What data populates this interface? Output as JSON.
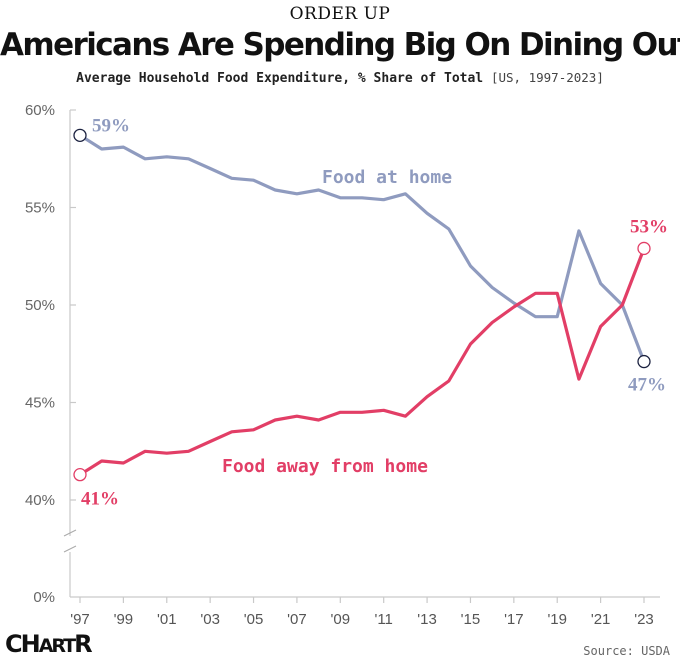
{
  "header": {
    "kicker": "ORDER UP",
    "title": "Americans Are Spending Big On Dining Out",
    "subtitle": "Average Household Food Expenditure, % Share of Total",
    "subtitle_range": "[US, 1997-2023]"
  },
  "footer": {
    "logo_big": "CH",
    "logo_mid": "ART",
    "logo_end": "R",
    "source": "Source: USDA"
  },
  "chart_data": {
    "type": "line",
    "title": "Americans Are Spending Big On Dining Out",
    "subtitle": "Average Household Food Expenditure, % Share of Total [US, 1997-2023]",
    "xlabel": "",
    "ylabel": "",
    "x": [
      1997,
      1998,
      1999,
      2000,
      2001,
      2002,
      2003,
      2004,
      2005,
      2006,
      2007,
      2008,
      2009,
      2010,
      2011,
      2012,
      2013,
      2014,
      2015,
      2016,
      2017,
      2018,
      2019,
      2020,
      2021,
      2022,
      2023
    ],
    "x_tick_values": [
      1997,
      1999,
      2001,
      2003,
      2005,
      2007,
      2009,
      2011,
      2013,
      2015,
      2017,
      2019,
      2021,
      2023
    ],
    "x_tick_labels": [
      "'97",
      "'99",
      "'01",
      "'03",
      "'05",
      "'07",
      "'09",
      "'11",
      "'13",
      "'15",
      "'17",
      "'19",
      "'21",
      "'23"
    ],
    "y_tick_values": [
      40,
      45,
      50,
      55,
      60
    ],
    "y_tick_labels": [
      "40%",
      "45%",
      "50%",
      "55%",
      "60%"
    ],
    "y_zero_label": "0%",
    "ylim": [
      40,
      60
    ],
    "axis_break": true,
    "grid": false,
    "series": [
      {
        "name": "Food at home",
        "color": "#8f9bbf",
        "start_label": "59%",
        "end_label": "47%",
        "values": [
          58.7,
          58.0,
          58.1,
          57.5,
          57.6,
          57.5,
          57.0,
          56.5,
          56.4,
          55.9,
          55.7,
          55.9,
          55.5,
          55.5,
          55.4,
          55.7,
          54.7,
          53.9,
          52.0,
          50.9,
          50.1,
          49.4,
          49.4,
          53.8,
          51.1,
          50.0,
          47.1
        ]
      },
      {
        "name": "Food away from home",
        "color": "#e23e66",
        "start_label": "41%",
        "end_label": "53%",
        "values": [
          41.3,
          42.0,
          41.9,
          42.5,
          42.4,
          42.5,
          43.0,
          43.5,
          43.6,
          44.1,
          44.3,
          44.1,
          44.5,
          44.5,
          44.6,
          44.3,
          45.3,
          46.1,
          48.0,
          49.1,
          49.9,
          50.6,
          50.6,
          46.2,
          48.9,
          50.0,
          52.9
        ]
      }
    ]
  }
}
